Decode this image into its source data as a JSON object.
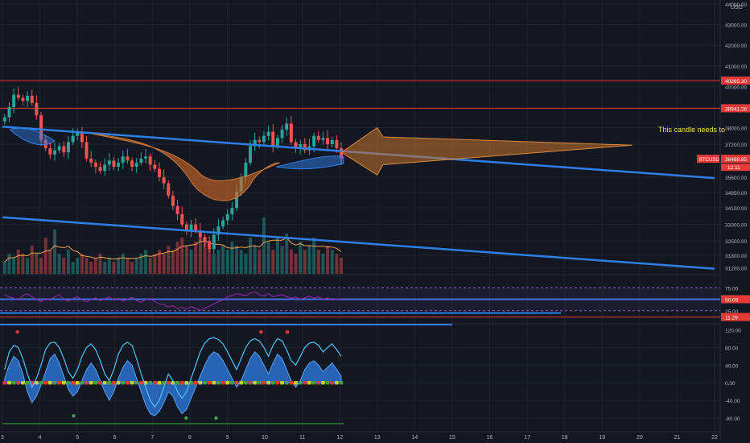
{
  "currency": "USD",
  "symbol": "BTCUSD",
  "countdown": "12:11",
  "annotation": "This candle needs to",
  "colors": {
    "background": "#131722",
    "grid": "#1f2430",
    "up": "#26a69a",
    "down": "#ef5350",
    "trend": "#2f7fe6",
    "rsi": "#9c27b0",
    "hline": "#e53935",
    "arrow": "#c8742a",
    "annotation": "#f5e642",
    "axis_text": "#b2b5be"
  },
  "chart_data": [
    {
      "type": "candlestick",
      "panel": "price",
      "y_ticks": [
        "44000.00",
        "43000.00",
        "42000.00",
        "41000.00",
        "40000.00",
        "38000.00",
        "37200.00",
        "35600.00",
        "34850.00",
        "34100.00",
        "33300.00",
        "32500.00",
        "31800.00",
        "31200.00"
      ],
      "ylim": [
        30900,
        44200
      ],
      "x_ticks": [
        "3",
        "4",
        "5",
        "6",
        "7",
        "8",
        "9",
        "10",
        "11",
        "12",
        "13",
        "14",
        "15",
        "16",
        "17",
        "18",
        "19",
        "20",
        "21",
        "22"
      ],
      "xlim": [
        3,
        22
      ],
      "price_labels": [
        {
          "text": "40285.30",
          "value": 40285.3
        },
        {
          "text": "38941.26",
          "value": 38941.26
        },
        {
          "text": "36488.85",
          "value": 36488.85
        }
      ],
      "horizontal_lines": [
        40285.3,
        38941.26
      ],
      "trendlines": [
        {
          "from": [
            3.0,
            38050
          ],
          "to": [
            22.0,
            35550
          ]
        },
        {
          "from": [
            3.0,
            33650
          ],
          "to": [
            22.0,
            31150
          ]
        }
      ],
      "closes": [
        38500,
        39000,
        39600,
        39450,
        39300,
        39550,
        39200,
        38600,
        37400,
        37000,
        36700,
        36900,
        37100,
        36800,
        37300,
        37600,
        37800,
        37300,
        36500,
        36300,
        36100,
        35900,
        36200,
        36400,
        36100,
        36300,
        36600,
        36400,
        36100,
        36300,
        36500,
        36600,
        36200,
        36000,
        35600,
        35300,
        34700,
        34200,
        33800,
        33300,
        33000,
        33300,
        33000,
        32700,
        32500,
        32100,
        32800,
        33200,
        33500,
        33800,
        34100,
        34900,
        35600,
        36300,
        37100,
        37400,
        37300,
        37600,
        37800,
        37100,
        37500,
        37900,
        38200,
        37300,
        37000,
        37200,
        36900,
        37100,
        37600,
        37400,
        37500,
        37200,
        37400,
        37000,
        36488.85
      ],
      "volumes": [
        3,
        5,
        4,
        6,
        5,
        4,
        7,
        5,
        4,
        9,
        6,
        11,
        5,
        4,
        6,
        3,
        4,
        5,
        4,
        3,
        4,
        5,
        3,
        4,
        3,
        4,
        5,
        4,
        3,
        4,
        5,
        6,
        4,
        5,
        6,
        5,
        7,
        6,
        8,
        9,
        7,
        6,
        8,
        10,
        9,
        6,
        5,
        6,
        7,
        6,
        8,
        7,
        6,
        5,
        9,
        7,
        6,
        14,
        8,
        6,
        9,
        7,
        10,
        6,
        5,
        8,
        6,
        7,
        9,
        6,
        5,
        7,
        6,
        5,
        4
      ]
    },
    {
      "type": "line",
      "panel": "rsi",
      "y_ticks": [
        "75.00",
        "25.00"
      ],
      "ylim": [
        0,
        100
      ],
      "value_labels": [
        {
          "text": "50.09",
          "value": 50.09
        },
        {
          "text": "11.29",
          "value": 11.29
        }
      ],
      "values": [
        60,
        55,
        52,
        48,
        58,
        62,
        55,
        50,
        45,
        52,
        48,
        55,
        60,
        50,
        46,
        52,
        55,
        49,
        44,
        50,
        53,
        47,
        51,
        55,
        48,
        52,
        46,
        50,
        54,
        47,
        43,
        49,
        52,
        45,
        40,
        38,
        33,
        36,
        30,
        32,
        28,
        34,
        30,
        26,
        30,
        35,
        40,
        45,
        48,
        55,
        58,
        62,
        60,
        58,
        63,
        66,
        60,
        57,
        62,
        55,
        58,
        60,
        56,
        52,
        55,
        50,
        53,
        57,
        52,
        55,
        50,
        53,
        48,
        51,
        50.09
      ]
    },
    {
      "type": "area",
      "panel": "oscillator",
      "y_ticks": [
        "120.00",
        "80.00",
        "40.00",
        "0.00",
        "-40.00",
        "-80.00"
      ],
      "ylim": [
        -100,
        130
      ],
      "wave": [
        10,
        40,
        60,
        50,
        20,
        -20,
        -45,
        -30,
        -5,
        25,
        55,
        65,
        45,
        15,
        -15,
        -30,
        -20,
        5,
        30,
        45,
        30,
        5,
        -20,
        -40,
        -20,
        10,
        35,
        50,
        40,
        10,
        -20,
        -50,
        -70,
        -75,
        -65,
        -45,
        -20,
        -30,
        -55,
        -70,
        -60,
        -35,
        -10,
        15,
        40,
        60,
        70,
        65,
        50,
        30,
        10,
        -10,
        5,
        30,
        55,
        70,
        60,
        40,
        20,
        45,
        65,
        55,
        30,
        5,
        -10,
        5,
        30,
        45,
        50,
        40,
        25,
        35,
        45,
        30,
        15
      ],
      "fast": [
        30,
        70,
        85,
        80,
        55,
        20,
        -10,
        10,
        40,
        75,
        90,
        92,
        80,
        55,
        25,
        10,
        30,
        60,
        80,
        88,
        75,
        50,
        20,
        5,
        30,
        65,
        85,
        92,
        85,
        55,
        20,
        -10,
        -40,
        -55,
        -40,
        -10,
        20,
        5,
        -20,
        -35,
        -20,
        10,
        40,
        70,
        90,
        100,
        102,
        98,
        88,
        70,
        50,
        30,
        55,
        80,
        95,
        100,
        95,
        80,
        60,
        85,
        100,
        95,
        75,
        50,
        40,
        60,
        80,
        90,
        92,
        85,
        70,
        80,
        88,
        75,
        60
      ]
    }
  ]
}
